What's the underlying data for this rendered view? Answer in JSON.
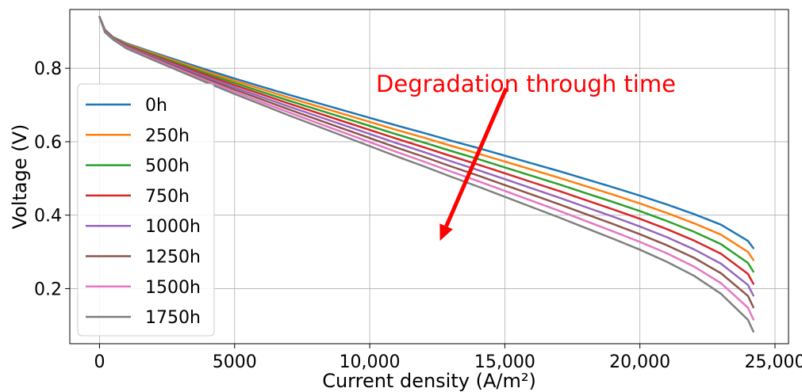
{
  "chart_data": {
    "type": "line",
    "title": "",
    "xlabel": "Current density (A/m²)",
    "ylabel": "Voltage (V)",
    "xlim": [
      -1100,
      25500
    ],
    "ylim": [
      0.05,
      0.96
    ],
    "xticks": [
      0,
      5000,
      10000,
      15000,
      20000,
      25000
    ],
    "xtick_labels": [
      "0",
      "5000",
      "10,000",
      "15,000",
      "20,000",
      "25,000"
    ],
    "yticks": [
      0.2,
      0.4,
      0.6,
      0.8
    ],
    "ytick_labels": [
      "0.2",
      "0.4",
      "0.6",
      "0.8"
    ],
    "grid": true,
    "legend": "left",
    "x": [
      0,
      200,
      500,
      1000,
      2000,
      3000,
      4000,
      5000,
      6000,
      7000,
      8000,
      9000,
      10000,
      11000,
      12000,
      13000,
      14000,
      15000,
      16000,
      17000,
      18000,
      19000,
      20000,
      21000,
      22000,
      23000,
      24000,
      24200
    ],
    "series": [
      {
        "name": "0h",
        "color": "#1f77b4",
        "values": [
          0.94,
          0.905,
          0.885,
          0.868,
          0.843,
          0.819,
          0.795,
          0.772,
          0.75,
          0.728,
          0.707,
          0.686,
          0.665,
          0.644,
          0.624,
          0.603,
          0.583,
          0.562,
          0.541,
          0.52,
          0.498,
          0.476,
          0.453,
          0.429,
          0.403,
          0.374,
          0.33,
          0.31
        ]
      },
      {
        "name": "250h",
        "color": "#ff7f0e",
        "values": [
          0.94,
          0.904,
          0.884,
          0.866,
          0.84,
          0.815,
          0.79,
          0.766,
          0.743,
          0.72,
          0.698,
          0.676,
          0.654,
          0.632,
          0.611,
          0.589,
          0.568,
          0.546,
          0.524,
          0.502,
          0.479,
          0.456,
          0.432,
          0.406,
          0.378,
          0.347,
          0.3,
          0.278
        ]
      },
      {
        "name": "500h",
        "color": "#2ca02c",
        "values": [
          0.94,
          0.903,
          0.883,
          0.864,
          0.837,
          0.811,
          0.785,
          0.76,
          0.736,
          0.712,
          0.689,
          0.666,
          0.643,
          0.62,
          0.598,
          0.575,
          0.553,
          0.53,
          0.507,
          0.484,
          0.46,
          0.436,
          0.411,
          0.384,
          0.355,
          0.321,
          0.27,
          0.246
        ]
      },
      {
        "name": "750h",
        "color": "#d62728",
        "values": [
          0.94,
          0.902,
          0.882,
          0.862,
          0.834,
          0.807,
          0.78,
          0.754,
          0.729,
          0.704,
          0.68,
          0.656,
          0.632,
          0.608,
          0.585,
          0.561,
          0.538,
          0.514,
          0.49,
          0.466,
          0.441,
          0.416,
          0.39,
          0.362,
          0.331,
          0.295,
          0.24,
          0.213
        ]
      },
      {
        "name": "1000h",
        "color": "#9467bd",
        "values": [
          0.94,
          0.901,
          0.881,
          0.86,
          0.831,
          0.803,
          0.775,
          0.748,
          0.722,
          0.696,
          0.671,
          0.646,
          0.621,
          0.596,
          0.572,
          0.547,
          0.523,
          0.498,
          0.473,
          0.448,
          0.422,
          0.396,
          0.369,
          0.34,
          0.307,
          0.268,
          0.21,
          0.181
        ]
      },
      {
        "name": "1250h",
        "color": "#8c564b",
        "values": [
          0.94,
          0.9,
          0.88,
          0.858,
          0.828,
          0.799,
          0.77,
          0.742,
          0.715,
          0.688,
          0.662,
          0.636,
          0.61,
          0.584,
          0.559,
          0.533,
          0.508,
          0.482,
          0.456,
          0.43,
          0.403,
          0.376,
          0.348,
          0.318,
          0.284,
          0.242,
          0.18,
          0.149
        ]
      },
      {
        "name": "1500h",
        "color": "#e377c2",
        "values": [
          0.94,
          0.899,
          0.879,
          0.856,
          0.825,
          0.795,
          0.765,
          0.736,
          0.708,
          0.68,
          0.653,
          0.626,
          0.599,
          0.572,
          0.546,
          0.519,
          0.493,
          0.466,
          0.439,
          0.412,
          0.384,
          0.356,
          0.327,
          0.296,
          0.26,
          0.215,
          0.148,
          0.116
        ]
      },
      {
        "name": "1750h",
        "color": "#7f7f7f",
        "values": [
          0.94,
          0.898,
          0.878,
          0.854,
          0.822,
          0.791,
          0.76,
          0.73,
          0.701,
          0.672,
          0.644,
          0.616,
          0.588,
          0.56,
          0.533,
          0.505,
          0.478,
          0.45,
          0.422,
          0.394,
          0.365,
          0.336,
          0.306,
          0.273,
          0.235,
          0.186,
          0.115,
          0.083
        ]
      }
    ],
    "annotation": {
      "text": "Degradation through time",
      "color": "#ff0000",
      "arrow_from": [
        15050,
        0.745
      ],
      "arrow_to": [
        12600,
        0.33
      ]
    }
  }
}
